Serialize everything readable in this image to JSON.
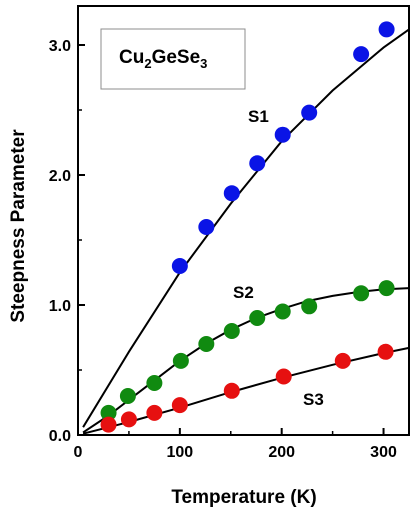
{
  "chart_data": {
    "type": "scatter",
    "title": "",
    "xlabel": "Temperature  (K)",
    "ylabel": "Steepness Parameter",
    "xlim": [
      0,
      325
    ],
    "ylim": [
      0,
      3.3
    ],
    "x_ticks": [
      0,
      100,
      200,
      300
    ],
    "x_tick_labels": [
      "0",
      "100",
      "200",
      "300"
    ],
    "y_ticks": [
      0,
      1,
      2,
      3
    ],
    "y_tick_labels": [
      "0.0",
      "1.0",
      "2.0",
      "3.0"
    ],
    "grid": false,
    "legend": "none",
    "annotation": {
      "parts": [
        {
          "text": "Cu",
          "sub": false
        },
        {
          "text": "2",
          "sub": true
        },
        {
          "text": "GeSe",
          "sub": false
        },
        {
          "text": "3",
          "sub": true
        }
      ]
    },
    "series": [
      {
        "label": "S1",
        "color": "#0a14e6",
        "points": [
          [
            100,
            1.3
          ],
          [
            126,
            1.6
          ],
          [
            151,
            1.86
          ],
          [
            176,
            2.09
          ],
          [
            201,
            2.31
          ],
          [
            227,
            2.48
          ],
          [
            278,
            2.93
          ],
          [
            303,
            3.12
          ]
        ],
        "fit": [
          [
            5,
            0.06
          ],
          [
            50,
            0.64
          ],
          [
            100,
            1.25
          ],
          [
            150,
            1.78
          ],
          [
            200,
            2.26
          ],
          [
            250,
            2.65
          ],
          [
            300,
            2.98
          ],
          [
            325,
            3.12
          ]
        ]
      },
      {
        "label": "S2",
        "color": "#108a10",
        "points": [
          [
            30,
            0.17
          ],
          [
            49,
            0.3
          ],
          [
            75,
            0.4
          ],
          [
            101,
            0.57
          ],
          [
            126,
            0.7
          ],
          [
            151,
            0.8
          ],
          [
            176,
            0.9
          ],
          [
            201,
            0.95
          ],
          [
            227,
            0.99
          ],
          [
            278,
            1.09
          ],
          [
            303,
            1.13
          ]
        ],
        "fit": [
          [
            5,
            0.02
          ],
          [
            30,
            0.15
          ],
          [
            50,
            0.27
          ],
          [
            75,
            0.42
          ],
          [
            100,
            0.57
          ],
          [
            125,
            0.7
          ],
          [
            150,
            0.81
          ],
          [
            175,
            0.9
          ],
          [
            200,
            0.97
          ],
          [
            225,
            1.03
          ],
          [
            250,
            1.07
          ],
          [
            275,
            1.1
          ],
          [
            300,
            1.12
          ],
          [
            325,
            1.13
          ]
        ]
      },
      {
        "label": "S3",
        "color": "#e61010",
        "points": [
          [
            30,
            0.08
          ],
          [
            50,
            0.12
          ],
          [
            75,
            0.17
          ],
          [
            100,
            0.23
          ],
          [
            151,
            0.34
          ],
          [
            202,
            0.45
          ],
          [
            260,
            0.57
          ],
          [
            302,
            0.64
          ]
        ],
        "fit": [
          [
            5,
            0.01
          ],
          [
            50,
            0.1
          ],
          [
            100,
            0.21
          ],
          [
            150,
            0.33
          ],
          [
            200,
            0.44
          ],
          [
            250,
            0.54
          ],
          [
            300,
            0.63
          ],
          [
            325,
            0.67
          ]
        ]
      }
    ]
  }
}
